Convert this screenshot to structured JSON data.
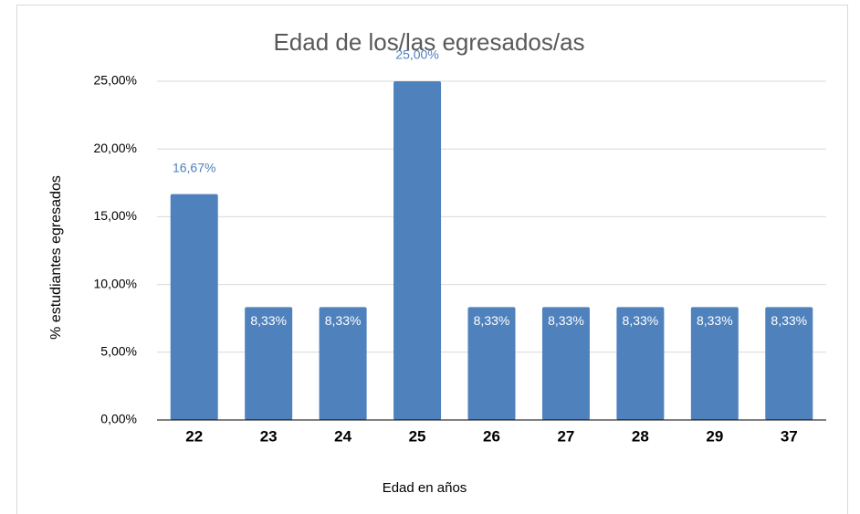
{
  "chart_data": {
    "type": "bar",
    "title": "Edad de los/las egresados/as",
    "x_label": "Edad en años",
    "y_label": "% estudiantes egresados",
    "categories": [
      "22",
      "23",
      "24",
      "25",
      "26",
      "27",
      "28",
      "29",
      "37"
    ],
    "values": [
      16.67,
      8.33,
      8.33,
      25,
      8.33,
      8.33,
      8.33,
      8.33,
      8.33
    ],
    "value_labels": [
      "16,67%",
      "8,33%",
      "8,33%",
      "25,00%",
      "8,33%",
      "8,33%",
      "8,33%",
      "8,33%",
      "8,33%"
    ],
    "color": "#4f81bd",
    "ylim": [
      0,
      25
    ],
    "yticks": [
      {
        "value": 0,
        "label": "0,00%"
      },
      {
        "value": 5,
        "label": "5,00%"
      },
      {
        "value": 10,
        "label": "10,00%"
      },
      {
        "value": 15,
        "label": "15,00%"
      },
      {
        "value": 20,
        "label": "20,00%"
      },
      {
        "value": 25,
        "label": "25,00%"
      }
    ],
    "grid": true
  }
}
